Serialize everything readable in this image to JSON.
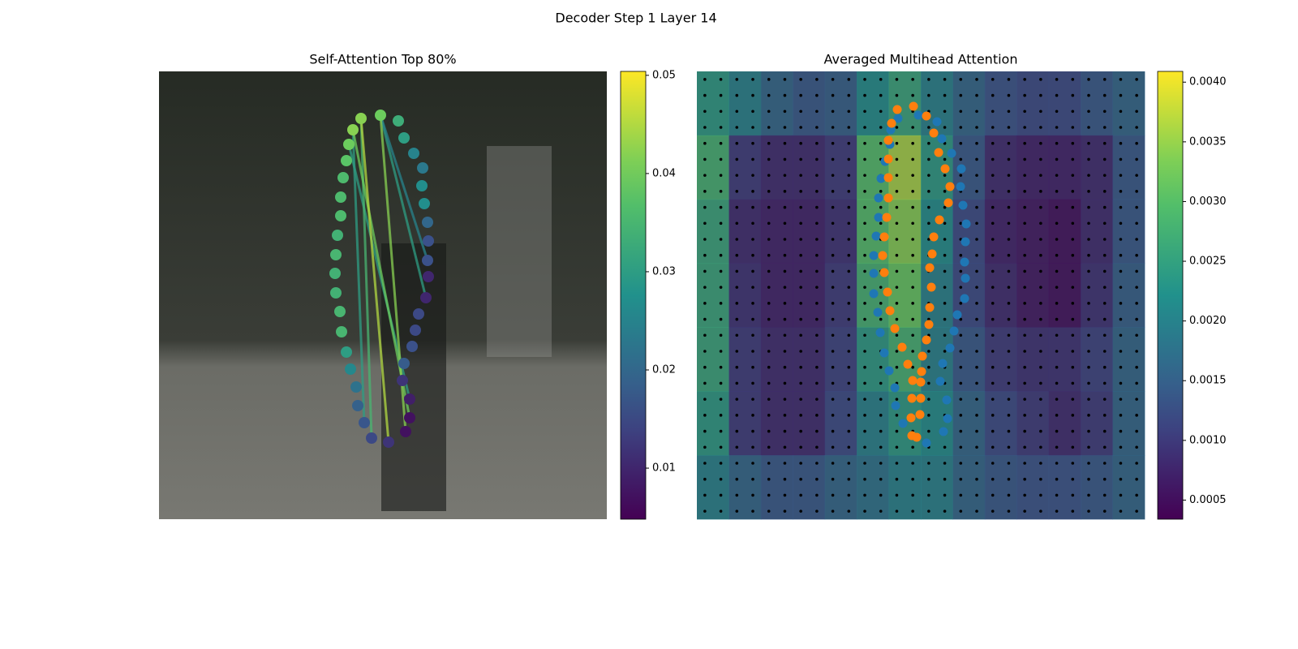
{
  "title": "Decoder Step 1 Layer 14",
  "chart_data": [
    {
      "type": "scatter",
      "title": "Self-Attention Top 80%",
      "colormap": "viridis",
      "x": [
        273,
        295,
        302,
        314,
        325,
        324,
        327,
        331,
        332,
        331,
        332,
        329,
        320,
        316,
        312,
        302,
        300,
        309,
        309,
        304,
        283,
        262,
        253,
        245,
        243,
        236,
        231,
        225,
        223,
        218,
        217,
        218,
        220,
        224,
        224,
        227,
        231,
        234,
        239,
        249
      ],
      "y": [
        54,
        61,
        82,
        101,
        119,
        141,
        163,
        186,
        209,
        233,
        253,
        279,
        299,
        319,
        339,
        360,
        381,
        404,
        427,
        444,
        457,
        452,
        433,
        412,
        389,
        367,
        346,
        321,
        296,
        273,
        249,
        226,
        202,
        178,
        155,
        131,
        110,
        90,
        72,
        58
      ],
      "values": [
        0.04,
        0.033,
        0.03,
        0.025,
        0.023,
        0.027,
        0.027,
        0.02,
        0.016,
        0.016,
        0.01,
        0.01,
        0.015,
        0.015,
        0.016,
        0.018,
        0.012,
        0.009,
        0.007,
        0.007,
        0.012,
        0.015,
        0.017,
        0.019,
        0.022,
        0.026,
        0.03,
        0.035,
        0.035,
        0.034,
        0.034,
        0.035,
        0.034,
        0.036,
        0.036,
        0.036,
        0.038,
        0.04,
        0.042,
        0.042
      ],
      "links": [
        [
          0,
          11,
          0.03
        ],
        [
          0,
          9,
          0.025
        ],
        [
          38,
          22,
          0.03
        ],
        [
          37,
          17,
          0.03
        ],
        [
          39,
          21,
          0.035
        ],
        [
          38,
          18,
          0.04
        ],
        [
          0,
          19,
          0.042
        ],
        [
          39,
          20,
          0.045
        ]
      ],
      "clim": [
        0.0048,
        0.0504
      ],
      "cticks": [
        0.01,
        0.02,
        0.03,
        0.04,
        0.05
      ]
    },
    {
      "type": "heatmap",
      "title": "Averaged Multihead Attention",
      "colormap": "viridis",
      "values": [
        [
          0.0024,
          0.002,
          0.0016,
          0.0014,
          0.0015,
          0.0022,
          0.0026,
          0.002,
          0.0016,
          0.0013,
          0.0012,
          0.0012,
          0.0014,
          0.0016
        ],
        [
          0.0028,
          0.001,
          0.0008,
          0.0008,
          0.001,
          0.003,
          0.0036,
          0.0024,
          0.0014,
          0.0008,
          0.0007,
          0.0007,
          0.0008,
          0.0014
        ],
        [
          0.0026,
          0.0008,
          0.0007,
          0.0007,
          0.0009,
          0.003,
          0.0034,
          0.0022,
          0.0012,
          0.0007,
          0.0006,
          0.0005,
          0.0008,
          0.0014
        ],
        [
          0.0026,
          0.0009,
          0.0007,
          0.0007,
          0.001,
          0.0028,
          0.0032,
          0.002,
          0.0012,
          0.0008,
          0.0006,
          0.0005,
          0.0009,
          0.0015
        ],
        [
          0.0026,
          0.001,
          0.0008,
          0.0008,
          0.0011,
          0.0024,
          0.0028,
          0.002,
          0.0014,
          0.001,
          0.0009,
          0.0009,
          0.0011,
          0.0016
        ],
        [
          0.0024,
          0.001,
          0.0008,
          0.0008,
          0.0012,
          0.002,
          0.0024,
          0.0022,
          0.0016,
          0.0012,
          0.001,
          0.0008,
          0.001,
          0.0016
        ],
        [
          0.002,
          0.0016,
          0.0014,
          0.0014,
          0.0016,
          0.0018,
          0.002,
          0.002,
          0.0016,
          0.0014,
          0.0013,
          0.0013,
          0.0014,
          0.0016
        ]
      ],
      "series": [
        {
          "color": "#1f77b4",
          "x": [
            248,
            239,
            238,
            232,
            227,
            224,
            224,
            221,
            218,
            218,
            218,
            223,
            226,
            231,
            237,
            244,
            245,
            254,
            283,
            304,
            309,
            308,
            300,
            303,
            312,
            317,
            321,
            330,
            331,
            330,
            331,
            332,
            328,
            325,
            326,
            314,
            302,
            296,
            273
          ],
          "y": [
            58,
            72,
            90,
            111,
            132,
            156,
            180,
            203,
            227,
            249,
            274,
            297,
            322,
            347,
            369,
            390,
            412,
            434,
            458,
            444,
            428,
            405,
            382,
            360,
            341,
            320,
            300,
            280,
            255,
            235,
            210,
            188,
            165,
            142,
            120,
            101,
            83,
            62,
            54
          ]
        },
        {
          "color": "#ff7f0e",
          "x": [
            267,
            247,
            240,
            236,
            236,
            236,
            236,
            234,
            231,
            229,
            231,
            235,
            238,
            244,
            253,
            260,
            266,
            265,
            264,
            265,
            271,
            275,
            276,
            276,
            277,
            278,
            283,
            286,
            287,
            289,
            287,
            290,
            292,
            299,
            310,
            312,
            306,
            298,
            292,
            283
          ],
          "y": [
            43,
            47,
            64,
            85,
            108,
            131,
            156,
            180,
            204,
            227,
            248,
            272,
            295,
            317,
            340,
            361,
            381,
            403,
            427,
            449,
            451,
            423,
            403,
            383,
            370,
            351,
            331,
            312,
            291,
            266,
            242,
            225,
            204,
            183,
            162,
            142,
            120,
            100,
            76,
            55
          ]
        }
      ],
      "clim": [
        0.00034,
        0.00409
      ],
      "cticks": [
        0.0005,
        {
          "value": 0.001,
          "label": "0.0010"
        },
        0.0015,
        {
          "value": 0.002,
          "label": "0.0020"
        },
        0.0025,
        {
          "value": 0.003,
          "label": "0.0030"
        },
        0.0035,
        {
          "value": 0.004,
          "label": "0.0040"
        }
      ]
    }
  ]
}
